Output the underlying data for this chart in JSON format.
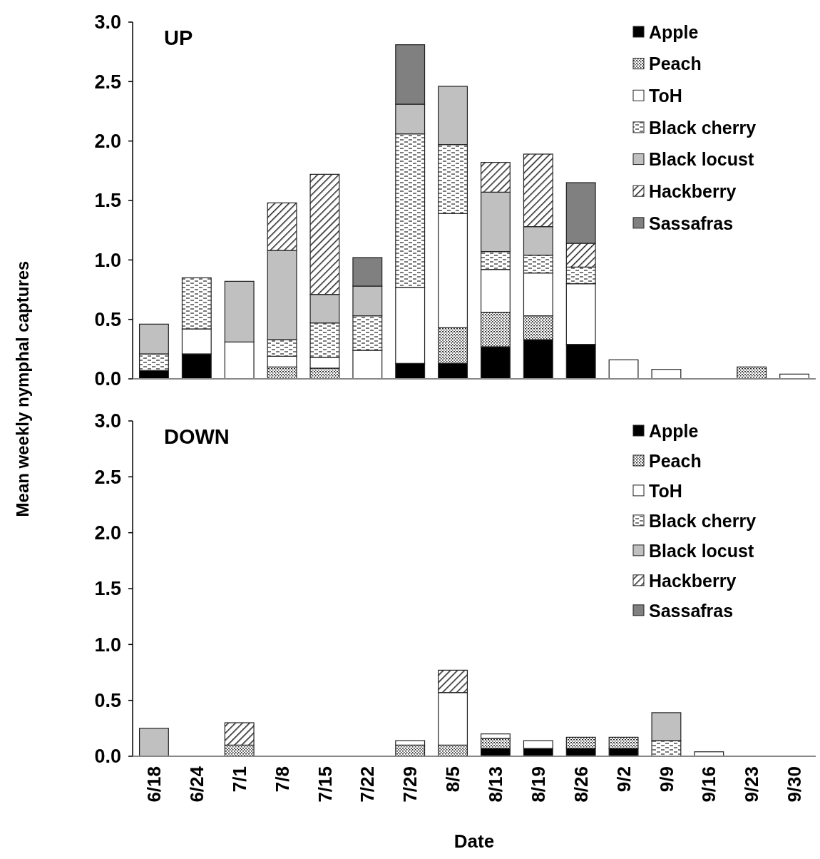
{
  "chart_data": [
    {
      "type": "bar",
      "title": "UP",
      "ylabel": "Mean weekly nymphal captures",
      "stacked": true,
      "legend": "top right",
      "tick_labels": "y",
      "ylim": [
        0,
        3
      ],
      "yticks": [
        {
          "value": 0,
          "label": "0.0"
        },
        {
          "value": 0.5,
          "label": "0.5"
        },
        {
          "value": 1,
          "label": "1.0"
        },
        {
          "value": 1.5,
          "label": "1.5"
        },
        {
          "value": 2,
          "label": "2.0"
        },
        {
          "value": 2.5,
          "label": "2.5"
        },
        {
          "value": 3,
          "label": "3.0"
        }
      ],
      "categories": [
        null,
        null,
        null,
        null,
        null,
        null,
        null,
        null,
        null,
        null,
        null,
        null,
        null,
        null,
        null,
        null
      ],
      "series": [
        {
          "name": "Apple",
          "color": "#000000",
          "values": [
            0.07,
            0.21,
            0,
            0,
            0,
            0,
            0.13,
            0.13,
            0.27,
            0.33,
            0.29,
            0,
            0,
            0,
            0,
            0
          ]
        },
        {
          "name": "Peach",
          "color": "#222222",
          "values": [
            0,
            0,
            0,
            0.1,
            0.09,
            0,
            0,
            0.3,
            0.29,
            0.2,
            0,
            0,
            0,
            0,
            0.1,
            0
          ]
        },
        {
          "name": "ToH",
          "color": "#ffffff",
          "values": [
            0,
            0.21,
            0.31,
            0.09,
            0.09,
            0.24,
            0.64,
            0.96,
            0.36,
            0.36,
            0.51,
            0.16,
            0.08,
            0,
            0,
            0.04
          ]
        },
        {
          "name": "Black cherry",
          "color": "#222222",
          "values": [
            0.14,
            0.43,
            0,
            0.14,
            0.29,
            0.29,
            1.29,
            0.58,
            0.15,
            0.15,
            0.14,
            0,
            0,
            0,
            0,
            0
          ]
        },
        {
          "name": "Black locust",
          "color": "#c0c0c0",
          "values": [
            0.25,
            0,
            0.51,
            0.75,
            0.24,
            0.25,
            0.25,
            0.49,
            0.5,
            0.24,
            0,
            0,
            0,
            0,
            0,
            0
          ]
        },
        {
          "name": "Hackberry",
          "color": "#222222",
          "values": [
            0,
            0,
            0,
            0.4,
            1.01,
            0,
            0,
            0,
            0.25,
            0.61,
            0.2,
            0,
            0,
            0,
            0,
            0
          ]
        },
        {
          "name": "Sassafras",
          "color": "#808080",
          "values": [
            0,
            0,
            0,
            0,
            0,
            0.24,
            0.5,
            0,
            0,
            0,
            0.51,
            0,
            0,
            0,
            0,
            0
          ]
        }
      ]
    },
    {
      "type": "bar",
      "title": "DOWN",
      "xlabel": "Date",
      "stacked": true,
      "legend": "top right",
      "ylim": [
        0,
        3
      ],
      "yticks": [
        {
          "value": 0,
          "label": "0.0"
        },
        {
          "value": 0.5,
          "label": "0.5"
        },
        {
          "value": 1,
          "label": "1.0"
        },
        {
          "value": 1.5,
          "label": "1.5"
        },
        {
          "value": 2,
          "label": "2.0"
        },
        {
          "value": 2.5,
          "label": "2.5"
        },
        {
          "value": 3,
          "label": "3.0"
        }
      ],
      "categories": [
        "6/18",
        "6/24",
        "7/1",
        "7/8",
        "7/15",
        "7/22",
        "7/29",
        "8/5",
        "8/13",
        "8/19",
        "8/26",
        "9/2",
        "9/9",
        "9/16",
        "9/23",
        "9/30"
      ],
      "series": [
        {
          "name": "Apple",
          "color": "#000000",
          "values": [
            0,
            0,
            0,
            0,
            0,
            0,
            0,
            0,
            0.07,
            0.07,
            0.07,
            0.07,
            0,
            0,
            0,
            0
          ]
        },
        {
          "name": "Peach",
          "color": "#222222",
          "values": [
            0,
            0,
            0.1,
            0,
            0,
            0,
            0.1,
            0.1,
            0.09,
            0,
            0.1,
            0.1,
            0,
            0,
            0,
            0
          ]
        },
        {
          "name": "ToH",
          "color": "#ffffff",
          "values": [
            0,
            0,
            0,
            0,
            0,
            0,
            0.04,
            0.47,
            0.04,
            0.07,
            0,
            0,
            0,
            0.04,
            0,
            0
          ]
        },
        {
          "name": "Black cherry",
          "color": "#222222",
          "values": [
            0,
            0,
            0,
            0,
            0,
            0,
            0,
            0,
            0,
            0,
            0,
            0,
            0.14,
            0,
            0,
            0
          ]
        },
        {
          "name": "Black locust",
          "color": "#c0c0c0",
          "values": [
            0.25,
            0,
            0,
            0,
            0,
            0,
            0,
            0,
            0,
            0,
            0,
            0,
            0.25,
            0,
            0,
            0
          ]
        },
        {
          "name": "Hackberry",
          "color": "#222222",
          "values": [
            0,
            0,
            0.2,
            0,
            0,
            0,
            0,
            0.2,
            0,
            0,
            0,
            0,
            0,
            0,
            0,
            0
          ]
        },
        {
          "name": "Sassafras",
          "color": "#808080",
          "values": [
            0,
            0,
            0,
            0,
            0,
            0,
            0,
            0,
            0,
            0,
            0,
            0,
            0,
            0,
            0,
            0
          ]
        }
      ]
    }
  ]
}
